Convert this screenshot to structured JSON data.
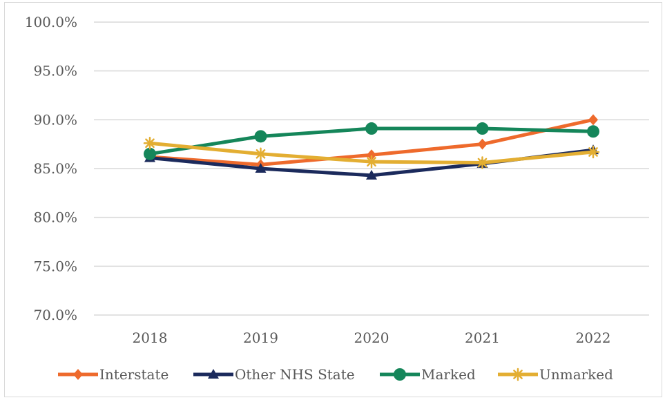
{
  "chart_data": {
    "type": "line",
    "title": "",
    "xlabel": "",
    "ylabel": "",
    "categories": [
      "2018",
      "2019",
      "2020",
      "2021",
      "2022"
    ],
    "ylim": [
      70,
      100
    ],
    "yticks": [
      70,
      75,
      80,
      85,
      90,
      95,
      100
    ],
    "ytick_labels": [
      "70.0%",
      "75.0%",
      "80.0%",
      "85.0%",
      "90.0%",
      "95.0%",
      "100.0%"
    ],
    "grid": true,
    "legend_position": "bottom",
    "series": [
      {
        "name": "Interstate",
        "values": [
          86.2,
          85.4,
          86.4,
          87.5,
          90.0
        ],
        "color": "#EE6A2C",
        "marker": "diamond-icon"
      },
      {
        "name": "Other NHS State",
        "values": [
          86.1,
          85.0,
          84.3,
          85.5,
          86.9
        ],
        "color": "#1B2A5C",
        "marker": "triangle-icon"
      },
      {
        "name": "Marked",
        "values": [
          86.5,
          88.3,
          89.1,
          89.1,
          88.8
        ],
        "color": "#15865A",
        "marker": "circle-icon"
      },
      {
        "name": "Unmarked",
        "values": [
          87.6,
          86.5,
          85.7,
          85.6,
          86.7
        ],
        "color": "#E3AE32",
        "marker": "asterisk-icon"
      }
    ]
  }
}
